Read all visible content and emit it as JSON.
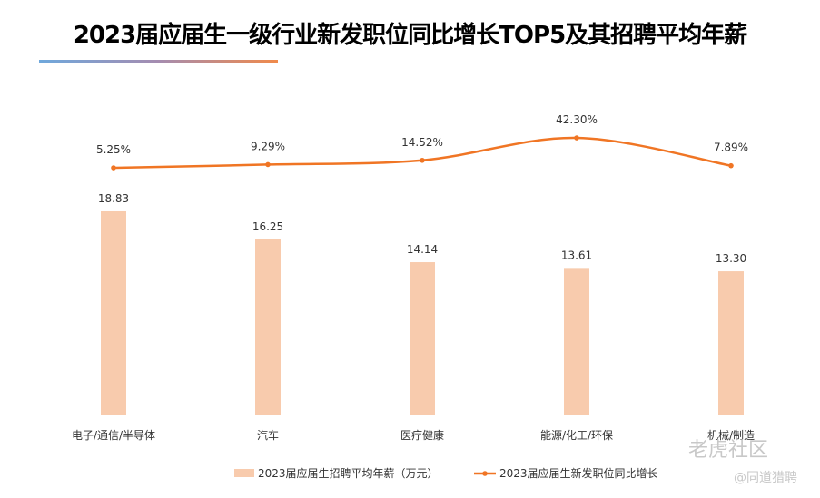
{
  "title": "2023届应届生一级行业新发职位同比增长TOP5及其招聘平均年薪",
  "watermark": {
    "main": "老虎社区",
    "sub": "@同道猎聘"
  },
  "chart_data": {
    "type": "bar+line",
    "title": "2023届应届生一级行业新发职位同比增长TOP5及其招聘平均年薪",
    "categories": [
      "电子/通信/半导体",
      "汽车",
      "医疗健康",
      "能源/化工/环保",
      "机械/制造"
    ],
    "series": [
      {
        "name": "2023届应届生招聘平均年薪（万元）",
        "type": "bar",
        "values": [
          18.83,
          16.25,
          14.14,
          13.61,
          13.3
        ],
        "labels": [
          "18.83",
          "16.25",
          "14.14",
          "13.61",
          "13.30"
        ],
        "color": "#f8cbad"
      },
      {
        "name": "2023届应届生新发职位同比增长",
        "type": "line",
        "values": [
          5.25,
          9.29,
          14.52,
          42.3,
          7.89
        ],
        "labels": [
          "5.25%",
          "9.29%",
          "14.52%",
          "42.30%",
          "7.89%"
        ],
        "color": "#f07524"
      }
    ],
    "legend": "bottom",
    "grid": false
  }
}
